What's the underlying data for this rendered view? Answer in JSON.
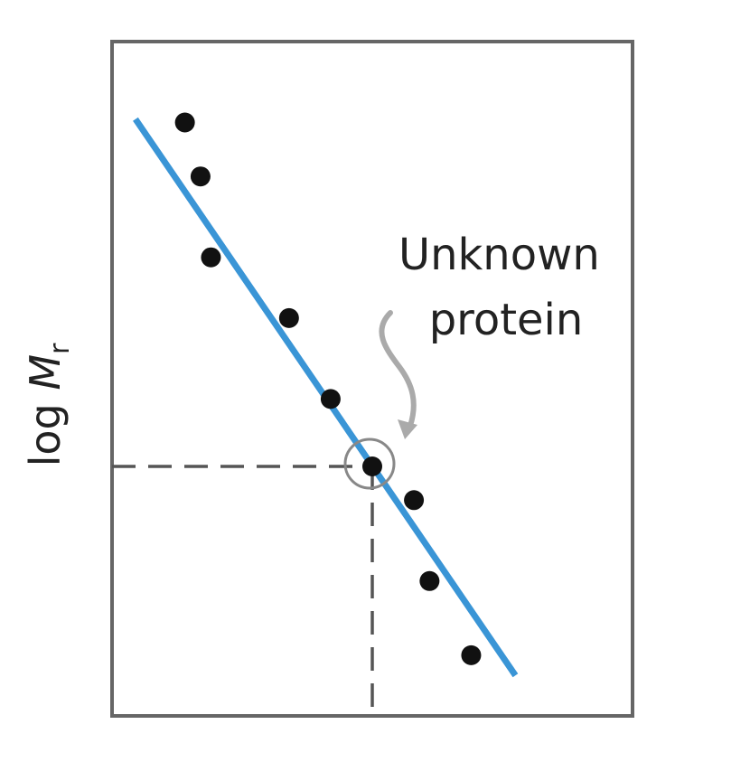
{
  "chart_data": {
    "type": "scatter",
    "ylabel": {
      "prefix": "log ",
      "symbol": "M",
      "subscript": "r"
    },
    "xlabel": "",
    "annotation": {
      "lines": [
        "Unknown",
        "protein"
      ],
      "target_point_index": 5
    },
    "points": [
      {
        "x": 0.14,
        "y": 0.88
      },
      {
        "x": 0.17,
        "y": 0.8
      },
      {
        "x": 0.19,
        "y": 0.68
      },
      {
        "x": 0.34,
        "y": 0.59
      },
      {
        "x": 0.42,
        "y": 0.47
      },
      {
        "x": 0.5,
        "y": 0.37
      },
      {
        "x": 0.58,
        "y": 0.32
      },
      {
        "x": 0.61,
        "y": 0.2
      },
      {
        "x": 0.69,
        "y": 0.09
      }
    ],
    "fit_line": {
      "x": [
        0.045,
        0.775
      ],
      "y": [
        0.885,
        0.06
      ]
    },
    "xlim": [
      0,
      1
    ],
    "ylim": [
      0,
      1
    ],
    "grid": false,
    "colors": {
      "points": "#111111",
      "fit_line": "#3a95d6",
      "frame": "#666666",
      "guides": "#555555",
      "circle": "#888888",
      "arrow": "#aaaaaa"
    }
  }
}
